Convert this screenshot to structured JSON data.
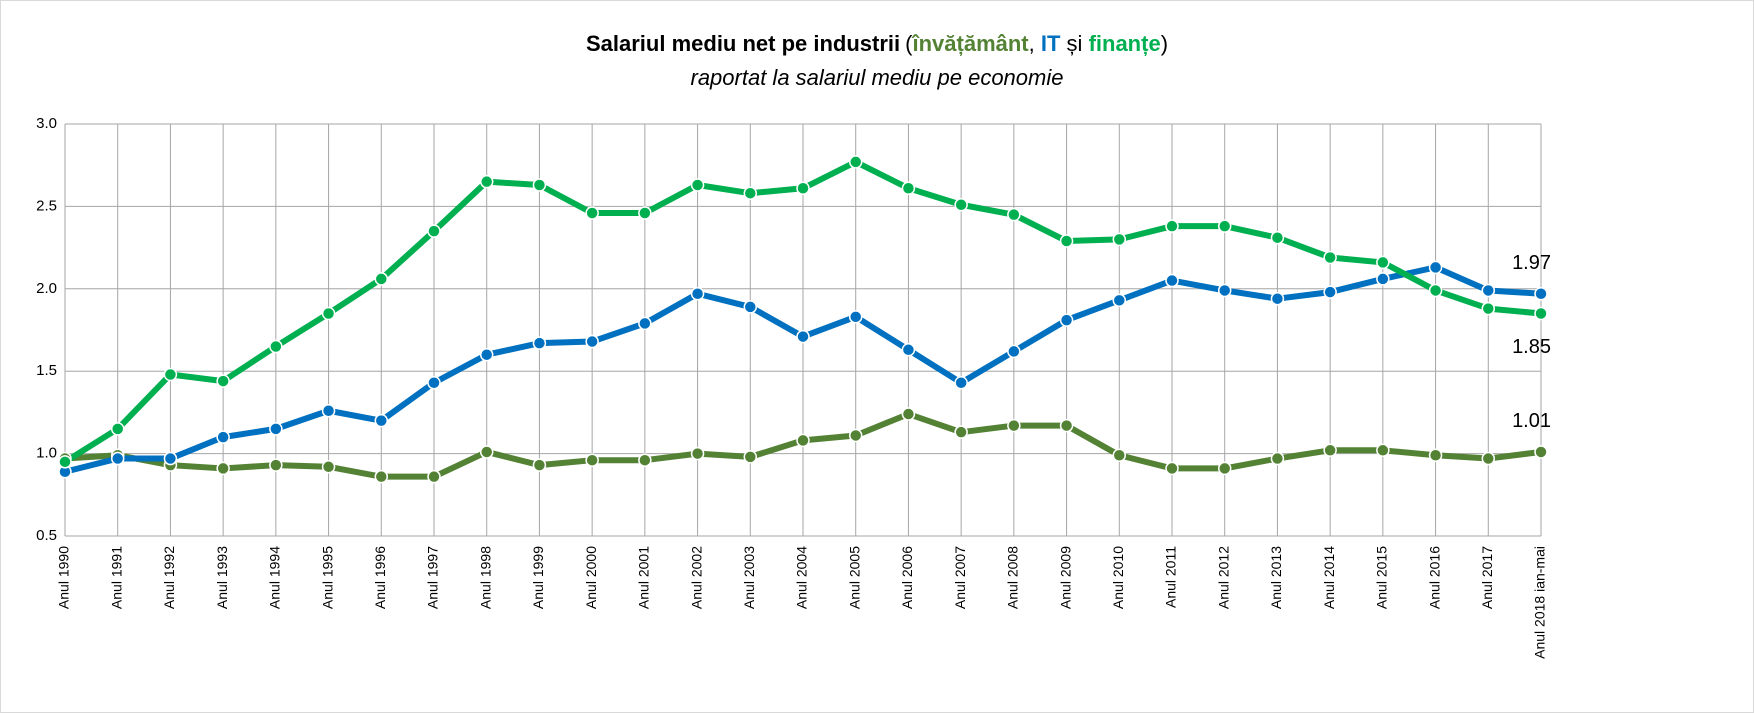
{
  "chart_data": {
    "type": "line",
    "title": "Salariul mediu net pe industrii",
    "title_parts": [
      "(",
      ", ",
      " și ",
      ")"
    ],
    "subtitle": "raportat la salariul mediu pe economie",
    "categories": [
      "Anul 1990",
      "Anul 1991",
      "Anul 1992",
      "Anul 1993",
      "Anul 1994",
      "Anul 1995",
      "Anul 1996",
      "Anul 1997",
      "Anul 1998",
      "Anul 1999",
      "Anul 2000",
      "Anul 2001",
      "Anul 2002",
      "Anul 2003",
      "Anul 2004",
      "Anul 2005",
      "Anul 2006",
      "Anul 2007",
      "Anul 2008",
      "Anul 2009",
      "Anul 2010",
      "Anul 2011",
      "Anul 2012",
      "Anul 2013",
      "Anul 2014",
      "Anul 2015",
      "Anul 2016",
      "Anul 2017",
      "Anul 2018 ian-mai"
    ],
    "series": [
      {
        "name": "învățământ",
        "color": "#548235",
        "values": [
          0.97,
          0.99,
          0.93,
          0.91,
          0.93,
          0.92,
          0.86,
          0.86,
          1.01,
          0.93,
          0.96,
          0.96,
          1.0,
          0.98,
          1.08,
          1.11,
          1.24,
          1.13,
          1.17,
          1.17,
          0.99,
          0.91,
          0.91,
          0.97,
          1.02,
          1.02,
          0.99,
          0.97,
          1.01
        ],
        "value_labels": [
          null,
          null,
          null,
          null,
          null,
          null,
          null,
          null,
          null,
          null,
          null,
          null,
          null,
          null,
          null,
          null,
          null,
          null,
          null,
          null,
          null,
          null,
          null,
          null,
          null,
          null,
          null,
          null,
          "1.01"
        ]
      },
      {
        "name": "IT",
        "color": "#0070c0",
        "values": [
          0.89,
          0.97,
          0.97,
          1.1,
          1.15,
          1.26,
          1.2,
          1.43,
          1.6,
          1.67,
          1.68,
          1.79,
          1.97,
          1.89,
          1.71,
          1.83,
          1.63,
          1.43,
          1.62,
          1.81,
          1.93,
          2.05,
          1.99,
          1.94,
          1.98,
          2.06,
          2.13,
          1.99,
          1.97
        ],
        "value_labels": [
          null,
          null,
          null,
          null,
          null,
          null,
          null,
          null,
          null,
          null,
          null,
          null,
          null,
          null,
          null,
          null,
          null,
          null,
          null,
          null,
          null,
          null,
          null,
          null,
          null,
          null,
          null,
          null,
          "1.97"
        ]
      },
      {
        "name": "finanțe",
        "color": "#00b050",
        "values": [
          0.95,
          1.15,
          1.48,
          1.44,
          1.65,
          1.85,
          2.06,
          2.35,
          2.65,
          2.63,
          2.46,
          2.46,
          2.63,
          2.58,
          2.61,
          2.77,
          2.61,
          2.51,
          2.45,
          2.29,
          2.3,
          2.38,
          2.38,
          2.31,
          2.19,
          2.16,
          1.99,
          1.88,
          1.85
        ],
        "value_labels": [
          null,
          null,
          null,
          null,
          null,
          null,
          null,
          null,
          null,
          null,
          null,
          null,
          null,
          null,
          null,
          null,
          null,
          null,
          null,
          null,
          null,
          null,
          null,
          null,
          null,
          null,
          null,
          null,
          "1.85"
        ]
      }
    ],
    "ylim": [
      0.5,
      3.0
    ],
    "yticks": [
      0.5,
      {
        "value": 1,
        "label": "1.0"
      },
      1.5,
      {
        "value": 2,
        "label": "2.0"
      },
      2.5,
      {
        "value": 3,
        "label": "3.0"
      }
    ],
    "grid": true
  }
}
